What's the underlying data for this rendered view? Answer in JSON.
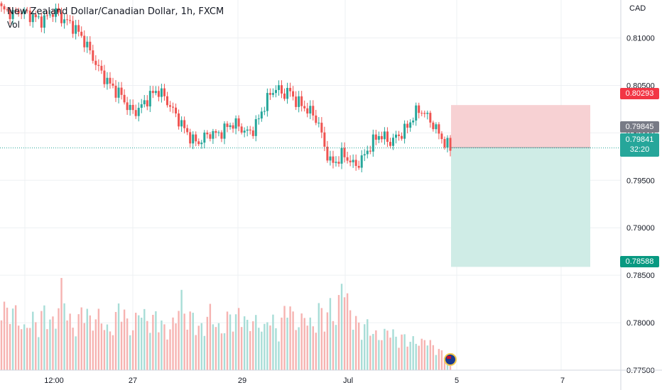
{
  "header": {
    "title": "New Zealand Dollar/Canadian Dollar, 1h, FXCM",
    "vol_label": "Vol",
    "currency": "CAD"
  },
  "chart_data": {
    "type": "candlestick",
    "symbol": "NZDCAD",
    "interval": "1h",
    "ylim": [
      0.775,
      0.814
    ],
    "y_ticks": [
      "0.81000",
      "0.80500",
      "0.80000",
      "0.79500",
      "0.79000",
      "0.78500",
      "0.78000",
      "0.77500"
    ],
    "x_ticks": [
      "12:00",
      "27",
      "29",
      "Jul",
      "5",
      "7"
    ],
    "price_path": [
      0.813,
      0.8128,
      0.8125,
      0.8129,
      0.8126,
      0.8123,
      0.812,
      0.8118,
      0.8125,
      0.8128,
      0.8121,
      0.8117,
      0.8112,
      0.8105,
      0.8095,
      0.8083,
      0.807,
      0.806,
      0.8052,
      0.8045,
      0.804,
      0.8028,
      0.8022,
      0.8025,
      0.8033,
      0.804,
      0.8045,
      0.804,
      0.803,
      0.802,
      0.801,
      0.8,
      0.7992,
      0.799,
      0.7996,
      0.8,
      0.7998,
      0.8002,
      0.8008,
      0.801,
      0.8005,
      0.8,
      0.8003,
      0.8015,
      0.803,
      0.8042,
      0.8048,
      0.804,
      0.8045,
      0.8035,
      0.803,
      0.8025,
      0.802,
      0.801,
      0.7985,
      0.7968,
      0.797,
      0.7978,
      0.7972,
      0.7965,
      0.797,
      0.798,
      0.799,
      0.7998,
      0.7995,
      0.799,
      0.7996,
      0.8,
      0.8008,
      0.802,
      0.8025,
      0.8018,
      0.801,
      0.8,
      0.799,
      0.7984
    ],
    "volume_path": [
      0.72,
      0.55,
      0.62,
      0.48,
      0.38,
      0.55,
      0.42,
      0.6,
      0.5,
      0.45,
      0.82,
      0.58,
      0.4,
      0.52,
      0.66,
      0.44,
      0.55,
      0.48,
      0.36,
      0.5,
      0.7,
      0.46,
      0.4,
      0.62,
      0.52,
      0.45,
      0.58,
      0.42,
      0.38,
      0.5,
      0.72,
      0.48,
      0.55,
      0.4,
      0.46,
      0.6,
      0.42,
      0.38,
      0.56,
      0.48,
      0.62,
      0.44,
      0.5,
      0.46,
      0.4,
      0.58,
      0.36,
      0.52,
      0.7,
      0.44,
      0.48,
      0.56,
      0.4,
      0.62,
      0.5,
      0.64,
      0.46,
      0.98,
      0.6,
      0.52,
      0.4,
      0.46,
      0.38,
      0.32,
      0.36,
      0.42,
      0.3,
      0.34,
      0.28,
      0.3,
      0.26,
      0.32,
      0.24,
      0.2,
      0.16,
      0.12
    ],
    "position": {
      "type": "short",
      "entry": 0.79845,
      "stop": 0.80293,
      "target": 0.78588
    },
    "current_price": "0.79841",
    "countdown": "32:20",
    "colors": {
      "up": "#26a69a",
      "down": "#ef5350",
      "stop_zone": "#f7d1d3",
      "target_zone": "#cfece6",
      "grid": "#eef0f3",
      "last_line": "#26a69a"
    }
  },
  "badges": {
    "stop": "0.80293",
    "entry": "0.79845",
    "last": "0.79841",
    "countdown": "32:20",
    "target": "0.78588"
  }
}
